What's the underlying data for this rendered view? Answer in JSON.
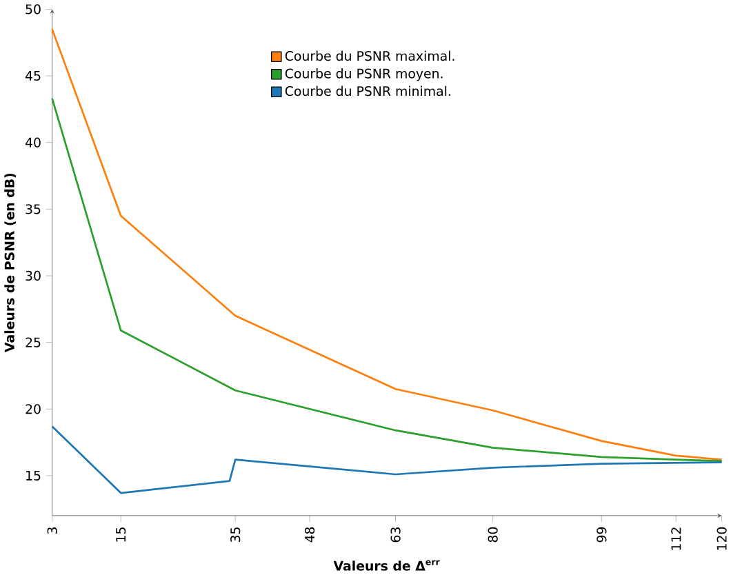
{
  "chart_data": {
    "type": "line",
    "xlabel": "Valeurs de **Δ**$^{err}$",
    "ylabel": "Valeurs de PSNR (en dB)",
    "xlim": [
      3,
      120
    ],
    "ylim": [
      12,
      50
    ],
    "xticks": [
      3,
      15,
      35,
      48,
      63,
      80,
      99,
      112,
      120
    ],
    "yticks": [
      15,
      20,
      25,
      30,
      35,
      40,
      45,
      50
    ],
    "legend": "top",
    "grid": false,
    "series": [
      {
        "name": "Courbe du PSNR maximal.",
        "color": "#ff7f0e",
        "x": [
          3,
          15,
          35,
          63,
          80,
          99,
          112,
          120
        ],
        "values": [
          48.5,
          34.5,
          27,
          21.5,
          19.9,
          17.6,
          16.5,
          16.2
        ]
      },
      {
        "name": "Courbe du PSNR moyen.",
        "color": "#2ca02c",
        "x": [
          3,
          15,
          35,
          63,
          80,
          99,
          112,
          120
        ],
        "values": [
          43.3,
          25.9,
          21.4,
          18.4,
          17.1,
          16.4,
          16.2,
          16.1
        ]
      },
      {
        "name": "Courbe du PSNR minimal.",
        "color": "#1f77b4",
        "x": [
          3,
          15,
          34,
          35,
          63,
          80,
          99,
          120
        ],
        "values": [
          18.7,
          13.7,
          14.6,
          16.2,
          15.1,
          15.6,
          15.9,
          16.0
        ]
      }
    ]
  }
}
